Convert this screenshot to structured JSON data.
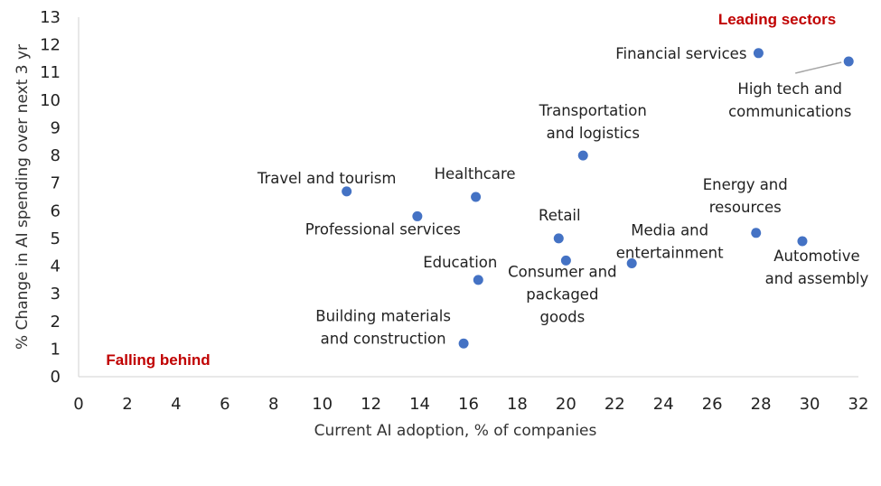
{
  "chart_data": {
    "type": "scatter",
    "xlabel": "Current AI adoption, % of companies",
    "ylabel": "% Change in AI spending over next 3 yr",
    "xlim": [
      0,
      32
    ],
    "ylim": [
      0,
      13
    ],
    "xticks": [
      "0",
      "2",
      "4",
      "6",
      "8",
      "10",
      "12",
      "14",
      "16",
      "18",
      "20",
      "22",
      "24",
      "26",
      "28",
      "30",
      "32"
    ],
    "yticks": [
      "0",
      "1",
      "2",
      "3",
      "4",
      "5",
      "6",
      "7",
      "8",
      "9",
      "10",
      "11",
      "12",
      "13"
    ],
    "grid": false,
    "marker_color": "#4472C4",
    "annotation_color": "#C00000",
    "annotations": {
      "top_right": "Leading sectors",
      "bottom_left": "Falling behind"
    },
    "points": [
      {
        "label": [
          "Financial services"
        ],
        "x": 27.9,
        "y": 11.7
      },
      {
        "label": [
          "High tech and",
          "communications"
        ],
        "x": 31.6,
        "y": 11.4
      },
      {
        "label": [
          "Transportation",
          "and logistics"
        ],
        "x": 20.7,
        "y": 8.0
      },
      {
        "label": [
          "Travel and tourism"
        ],
        "x": 11.0,
        "y": 6.7
      },
      {
        "label": [
          "Healthcare"
        ],
        "x": 16.3,
        "y": 6.5
      },
      {
        "label": [
          "Professional services"
        ],
        "x": 13.9,
        "y": 5.8
      },
      {
        "label": [
          "Retail"
        ],
        "x": 19.7,
        "y": 5.0
      },
      {
        "label": [
          "Energy and",
          "resources"
        ],
        "x": 27.8,
        "y": 5.2
      },
      {
        "label": [
          "Media and",
          "entertainment"
        ],
        "x": 22.7,
        "y": 4.1
      },
      {
        "label": [
          "Automotive",
          "and assembly"
        ],
        "x": 29.7,
        "y": 4.9
      },
      {
        "label": [
          "Consumer and",
          "packaged",
          "goods"
        ],
        "x": 20.0,
        "y": 4.2
      },
      {
        "label": [
          "Education"
        ],
        "x": 16.4,
        "y": 3.5
      },
      {
        "label": [
          "Building materials",
          "and construction"
        ],
        "x": 15.8,
        "y": 1.2
      }
    ]
  }
}
